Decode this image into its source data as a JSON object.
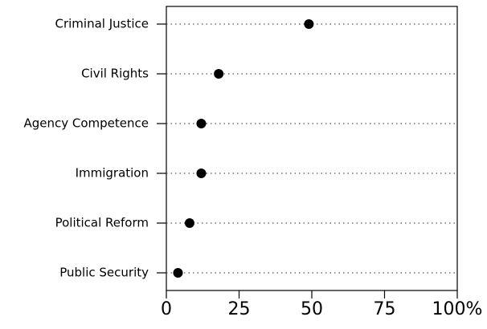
{
  "chart_data": {
    "type": "dot",
    "categories": [
      "Criminal Justice",
      "Civil Rights",
      "Agency Competence",
      "Immigration",
      "Political Reform",
      "Public Security"
    ],
    "values": [
      49,
      18,
      12,
      12,
      8,
      4
    ],
    "color": "#000000",
    "xlim": [
      0,
      100
    ],
    "xticks": [
      0,
      25,
      50,
      75,
      {
        "value": 100,
        "label": "100%"
      }
    ]
  }
}
